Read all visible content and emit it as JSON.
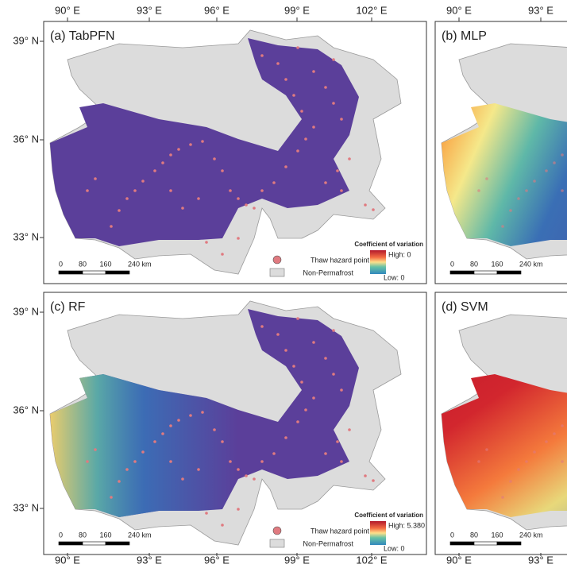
{
  "lon_labels": [
    "90° E",
    "93° E",
    "96° E",
    "99° E",
    "102° E"
  ],
  "lat_labels": [
    "39° N",
    "36° N",
    "33° N"
  ],
  "panels": [
    {
      "title": "(a) TabPFN",
      "scale": [
        "0",
        "80",
        "160",
        "240 km"
      ],
      "legend": {
        "title": "Coefficient of variation",
        "high": "High: 0",
        "low": "Low: 0",
        "points": "Thaw hazard point",
        "non_permafrost": "Non-Permafrost"
      }
    },
    {
      "title": "(b) MLP",
      "scale": [
        "0",
        "80",
        "160",
        "240 km"
      ]
    },
    {
      "title": "(c) RF",
      "scale": [
        "0",
        "80",
        "160",
        "240 km"
      ],
      "legend": {
        "title": "Coefficient of variation",
        "high": "High: 5.380",
        "low": "Low: 0",
        "points": "Thaw hazard point",
        "non_permafrost": "Non-Permafrost"
      }
    },
    {
      "title": "(d) SVM",
      "scale": [
        "0",
        "80",
        "160",
        "240 km"
      ]
    }
  ]
}
